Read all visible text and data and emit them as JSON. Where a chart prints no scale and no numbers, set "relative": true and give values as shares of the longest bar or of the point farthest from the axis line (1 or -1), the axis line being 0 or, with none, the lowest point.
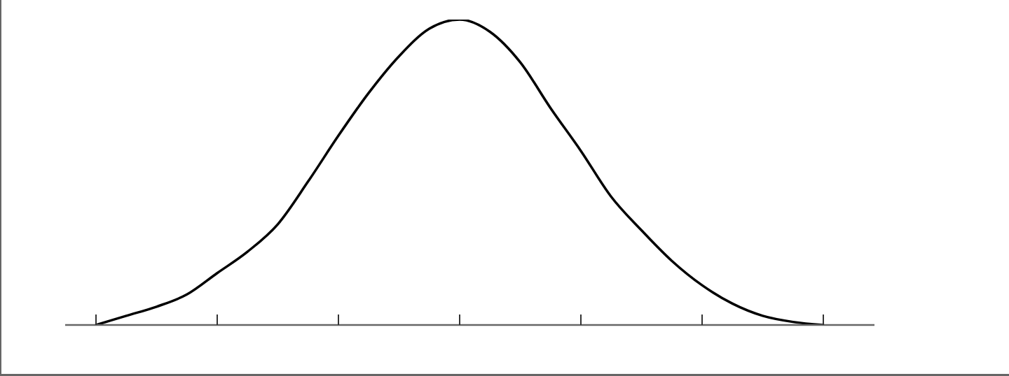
{
  "chart_data": {
    "type": "line",
    "relative": true,
    "categories": [
      null,
      null,
      null,
      null,
      null,
      null,
      null,
      null,
      null,
      null,
      null,
      null,
      null,
      null,
      null,
      null,
      null,
      null,
      null,
      null,
      null,
      null,
      null,
      null,
      null
    ],
    "values": [
      0,
      0.03,
      0.06,
      0.1,
      0.17,
      0.24,
      0.33,
      0.47,
      0.62,
      0.76,
      0.88,
      0.97,
      1,
      0.96,
      0.86,
      0.71,
      0.57,
      0.42,
      0.31,
      0.21,
      0.13,
      0.07,
      0.03,
      0.01,
      0
    ],
    "color": "#000000"
  }
}
